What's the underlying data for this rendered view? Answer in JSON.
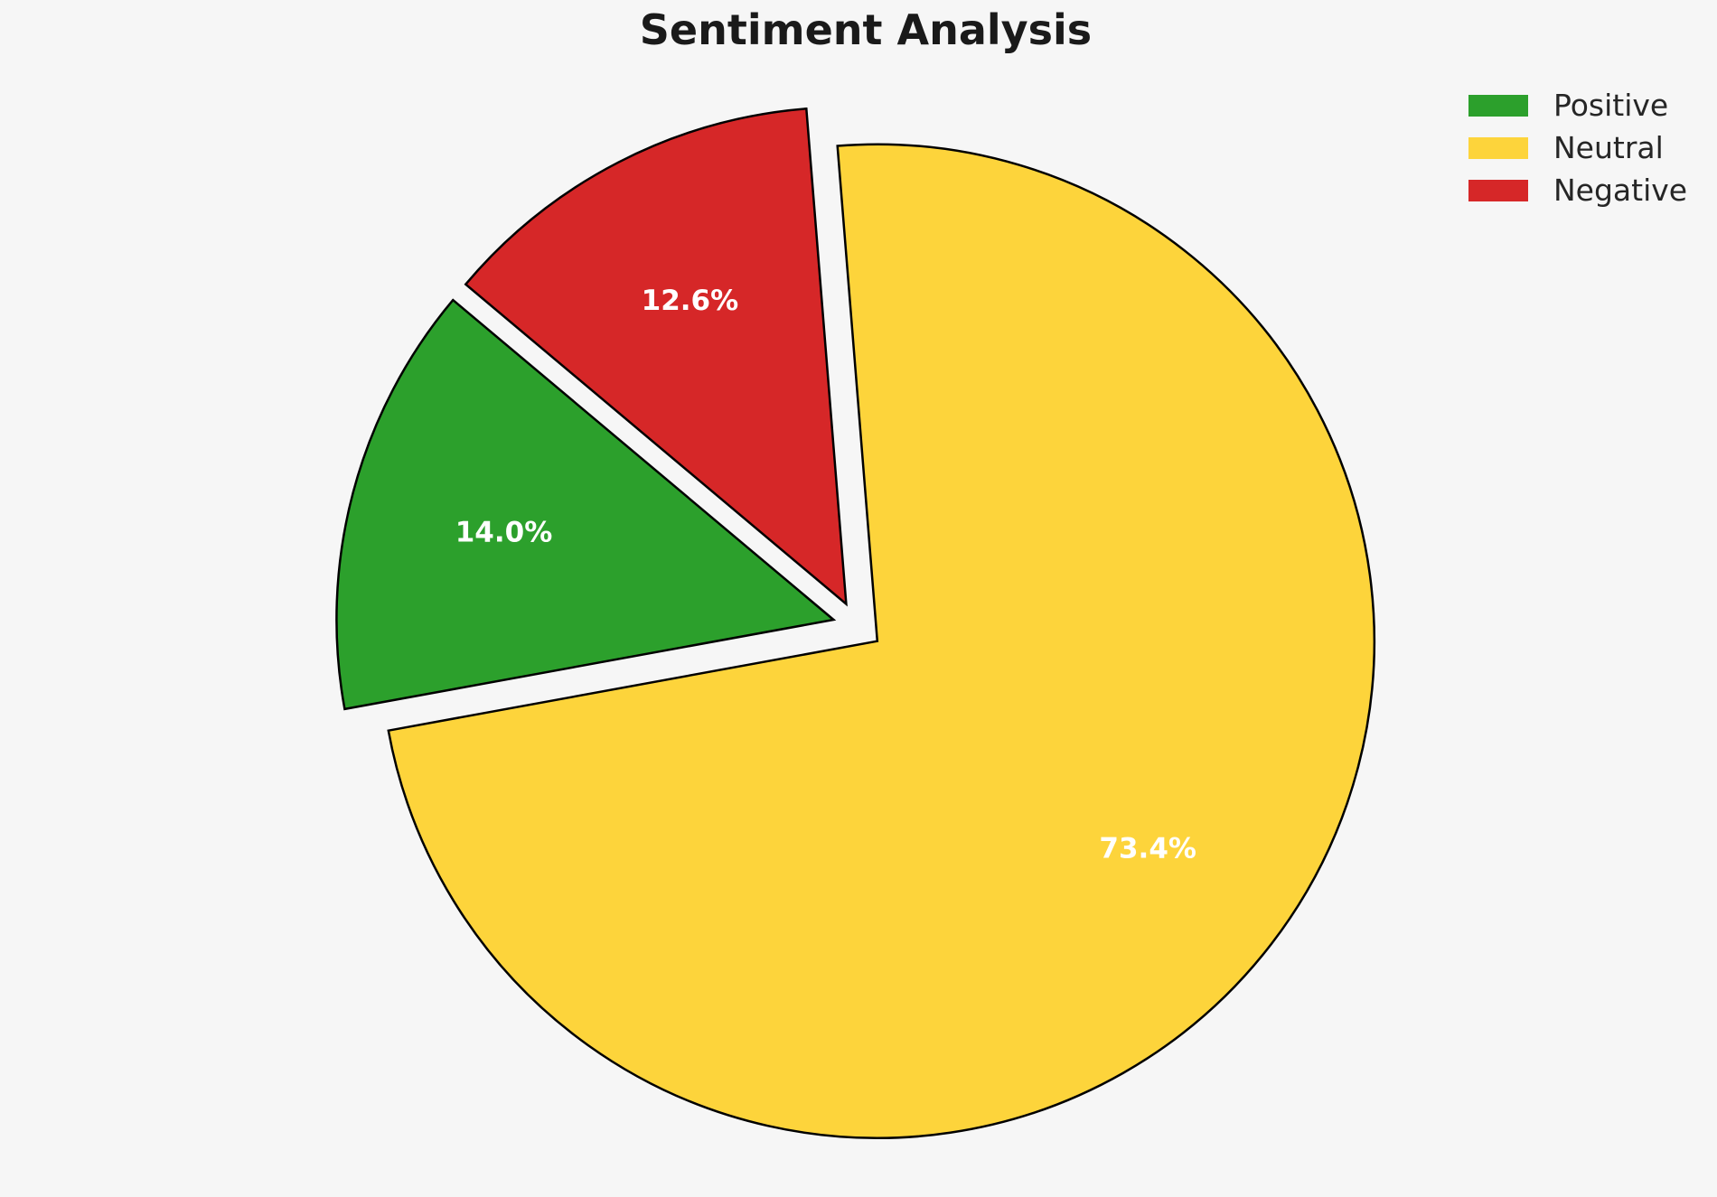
{
  "chart_data": {
    "type": "pie",
    "title": "Sentiment Analysis",
    "slices": [
      {
        "label": "Positive",
        "value": 14.0,
        "pct_label": "14.0%",
        "color": "#2CA02C"
      },
      {
        "label": "Neutral",
        "value": 73.4,
        "pct_label": "73.4%",
        "color": "#FDD43B"
      },
      {
        "label": "Negative",
        "value": 12.6,
        "pct_label": "12.6%",
        "color": "#D62728"
      }
    ],
    "legend": {
      "position": "upper-right",
      "frame": false,
      "items": [
        "Positive",
        "Neutral",
        "Negative"
      ]
    },
    "start_angle_deg": 94.6,
    "direction": "counterclockwise",
    "draw_order": [
      2,
      0,
      1
    ],
    "explode": 0.05,
    "pct_label_color": "#FFFFFF",
    "edge_color": "#000000",
    "background_color": "#F6F6F6",
    "title_color": "#1A1A1A"
  }
}
